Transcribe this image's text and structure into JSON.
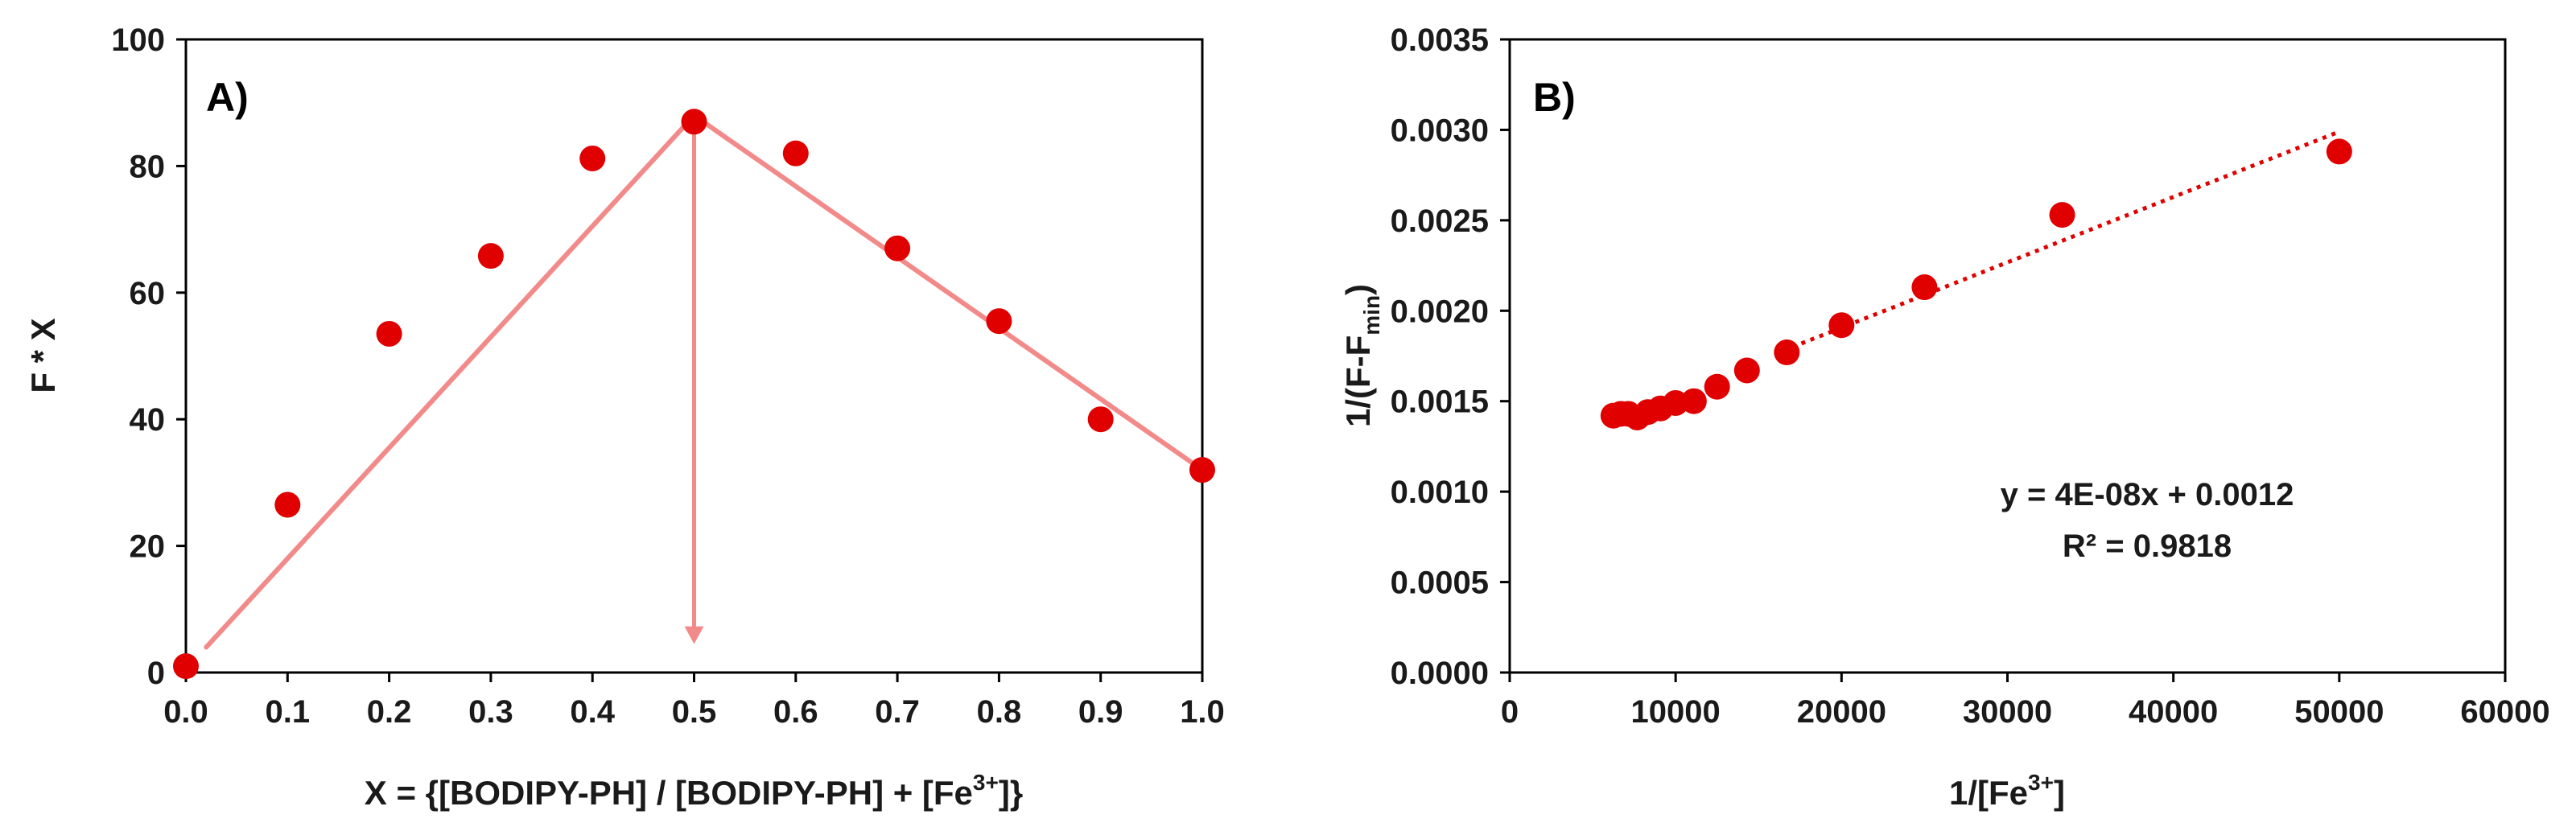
{
  "colors": {
    "marker": "#e00000",
    "fit_line": "#f28a8a",
    "trend_line": "#e00000",
    "axis": "#000000",
    "text": "#1a1a1a"
  },
  "chart_data": [
    {
      "type": "scatter",
      "panel_label": "A)",
      "xlabel": "X = {[BODIPY-PH] / [BODIPY-PH] + [Fe3+]}",
      "xlabel_parts": {
        "pre": "X = {[BODIPY-PH] / [BODIPY-PH] + [Fe",
        "sup": "3+",
        "post": "]}"
      },
      "ylabel": "F * X",
      "xlim": [
        0,
        1
      ],
      "ylim": [
        0,
        100
      ],
      "x_ticks": [
        "0.0",
        "0.1",
        "0.2",
        "0.3",
        "0.4",
        "0.5",
        "0.6",
        "0.7",
        "0.8",
        "0.9",
        "1.0"
      ],
      "x_tick_values": [
        0,
        0.1,
        0.2,
        0.3,
        0.4,
        0.5,
        0.6,
        0.7,
        0.8,
        0.9,
        1.0
      ],
      "y_ticks": [
        "0",
        "20",
        "40",
        "60",
        "80",
        "100"
      ],
      "y_tick_values": [
        0,
        20,
        40,
        60,
        80,
        100
      ],
      "x": [
        0.0,
        0.1,
        0.2,
        0.3,
        0.4,
        0.5,
        0.6,
        0.7,
        0.8,
        0.9,
        1.0
      ],
      "y": [
        1,
        26.5,
        53.5,
        65.8,
        81.2,
        87,
        82,
        67,
        55.5,
        40,
        32
      ],
      "fit_lines": [
        {
          "x": [
            0.02,
            0.5
          ],
          "y": [
            4,
            88
          ]
        },
        {
          "x": [
            0.5,
            1.0
          ],
          "y": [
            88,
            32
          ]
        }
      ],
      "arrow": {
        "x": 0.5,
        "y_from": 88,
        "y_to": 4.5
      }
    },
    {
      "type": "scatter",
      "panel_label": "B)",
      "xlabel": "1/[Fe3+]",
      "xlabel_parts": {
        "pre": "1/[Fe",
        "sup": "3+",
        "post": "]"
      },
      "ylabel": "1/(F-Fmin)",
      "ylabel_parts": {
        "pre": "1/(F-F",
        "sub": "min",
        "post": ")"
      },
      "xlim": [
        0,
        60000
      ],
      "ylim": [
        0,
        0.0035
      ],
      "x_ticks": [
        "0",
        "10000",
        "20000",
        "30000",
        "40000",
        "50000",
        "60000"
      ],
      "x_tick_values": [
        0,
        10000,
        20000,
        30000,
        40000,
        50000,
        60000
      ],
      "y_ticks": [
        "0.0000",
        "0.0005",
        "0.0010",
        "0.0015",
        "0.0020",
        "0.0025",
        "0.0030",
        "0.0035"
      ],
      "y_tick_values": [
        0,
        0.0005,
        0.001,
        0.0015,
        0.002,
        0.0025,
        0.003,
        0.0035
      ],
      "x": [
        6250,
        6700,
        7150,
        7690,
        8330,
        9090,
        10000,
        11100,
        12500,
        14300,
        16700,
        20000,
        25000,
        33300,
        50000
      ],
      "y": [
        0.00142,
        0.00143,
        0.00143,
        0.00141,
        0.00144,
        0.00146,
        0.00149,
        0.0015,
        0.00158,
        0.00167,
        0.00177,
        0.00192,
        0.00213,
        0.00253,
        0.00288
      ],
      "trendline": {
        "x": [
          16500,
          50000
        ],
        "y": [
          0.00178,
          0.00299
        ],
        "style": "dotted"
      },
      "equation": "y = 4E-08x + 0.0012",
      "r_squared": "R² = 0.9818"
    }
  ]
}
